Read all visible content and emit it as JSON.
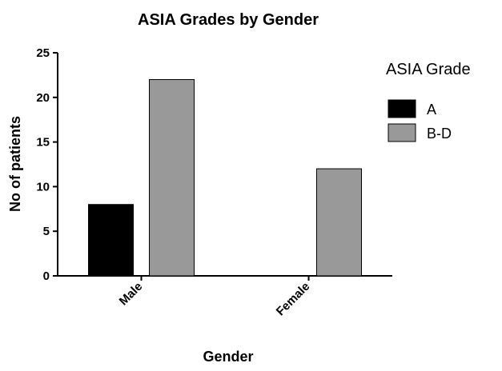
{
  "chart_data": {
    "type": "bar",
    "title": "ASIA Grades by Gender",
    "xlabel": "Gender",
    "ylabel": "No of patients",
    "categories": [
      "Male",
      "Female"
    ],
    "series": [
      {
        "name": "A",
        "values": [
          8,
          0
        ],
        "color": "#000000"
      },
      {
        "name": "B-D",
        "values": [
          22,
          12
        ],
        "color": "#999999"
      }
    ],
    "ylim": [
      0,
      25
    ],
    "yticks": [
      0,
      5,
      10,
      15,
      20,
      25
    ],
    "grid": false,
    "legend": {
      "title": "ASIA Grade",
      "position": "top-right"
    }
  }
}
